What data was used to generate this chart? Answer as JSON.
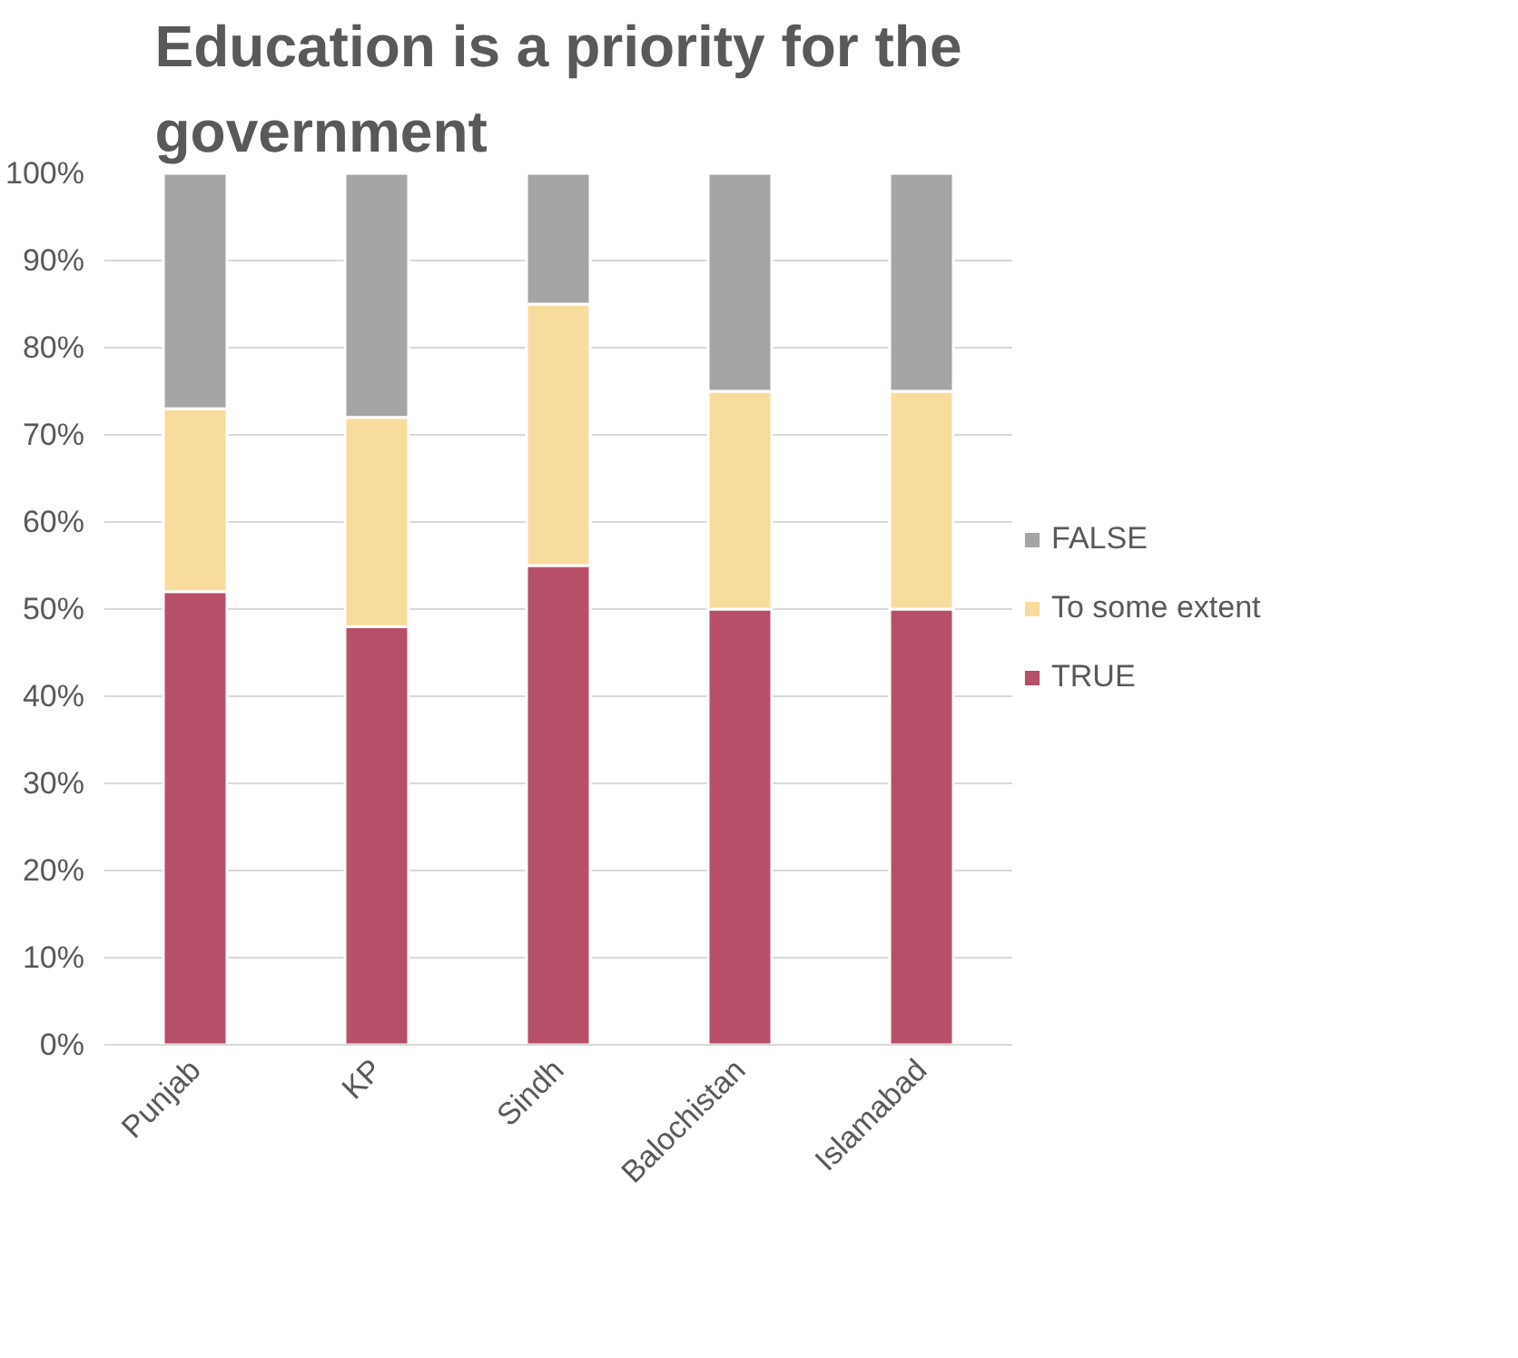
{
  "chart_data": {
    "type": "bar",
    "title": "Education is a priority for the government",
    "stacked": true,
    "categories": [
      "Punjab",
      "KP",
      "Sindh",
      "Balochistan",
      "Islamabad"
    ],
    "series": [
      {
        "name": "TRUE",
        "color": "#b84f68",
        "values": [
          52,
          48,
          55,
          50,
          50
        ]
      },
      {
        "name": "To some extent",
        "color": "#f8dc9e",
        "values": [
          21,
          24,
          30,
          25,
          25
        ]
      },
      {
        "name": "FALSE",
        "color": "#a5a5a5",
        "values": [
          27,
          28,
          15,
          25,
          25
        ]
      }
    ],
    "ylim": [
      0,
      100
    ],
    "yticks": [
      {
        "value": 0,
        "label": "0%"
      },
      {
        "value": 10,
        "label": "10%"
      },
      {
        "value": 20,
        "label": "20%"
      },
      {
        "value": 30,
        "label": "30%"
      },
      {
        "value": 40,
        "label": "40%"
      },
      {
        "value": 50,
        "label": "50%"
      },
      {
        "value": 60,
        "label": "60%"
      },
      {
        "value": 70,
        "label": "70%"
      },
      {
        "value": 80,
        "label": "80%"
      },
      {
        "value": 90,
        "label": "90%"
      },
      {
        "value": 100,
        "label": "100%"
      }
    ],
    "grid": "y",
    "legend": "right"
  }
}
